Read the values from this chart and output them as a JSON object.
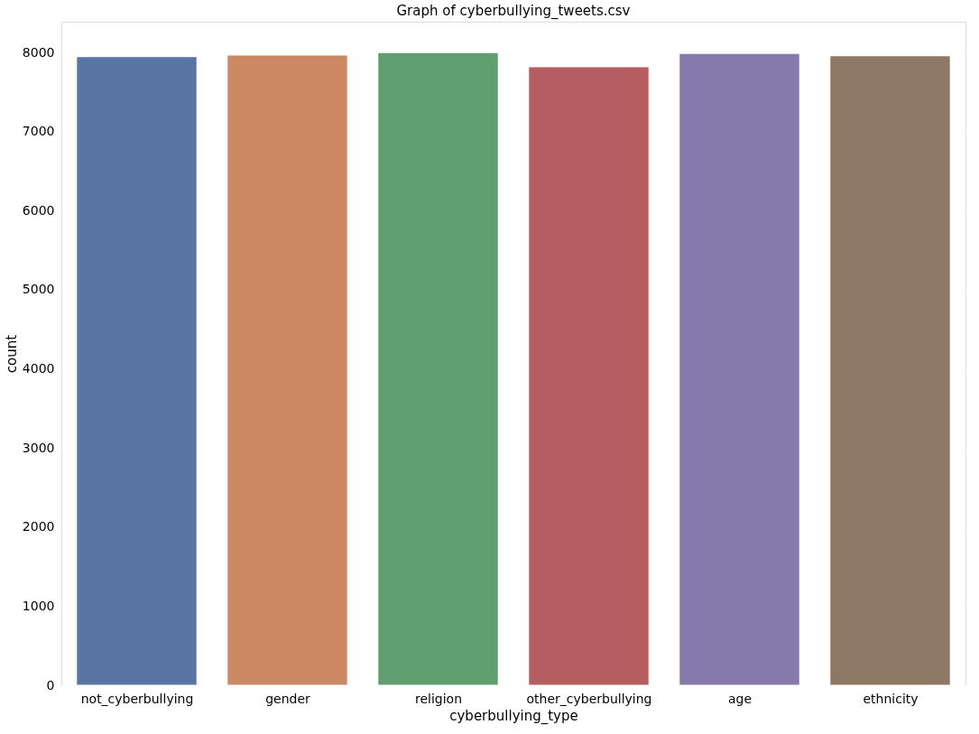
{
  "chart_data": {
    "type": "bar",
    "title": "Graph of cyberbullying_tweets.csv",
    "xlabel": "cyberbullying_type",
    "ylabel": "count",
    "categories": [
      "not_cyberbullying",
      "gender",
      "religion",
      "other_cyberbullying",
      "age",
      "ethnicity"
    ],
    "values": [
      7950,
      7970,
      8000,
      7820,
      7990,
      7960
    ],
    "colors": [
      "#5875a4",
      "#cc8963",
      "#5f9e6e",
      "#b55d60",
      "#857aab",
      "#8d7866"
    ],
    "ylim": [
      0,
      8390
    ],
    "yticks": [
      0,
      1000,
      2000,
      3000,
      4000,
      5000,
      6000,
      7000,
      8000
    ],
    "grid": "y"
  }
}
